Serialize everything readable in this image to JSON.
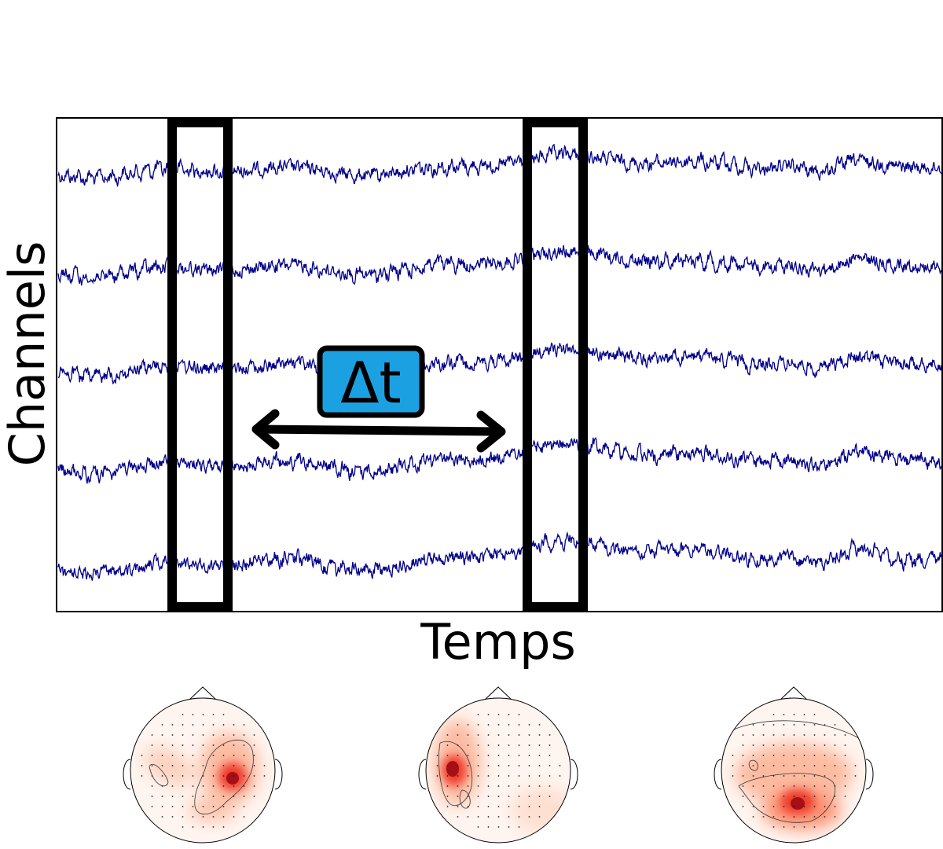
{
  "figure": {
    "xlabel": "Temps",
    "ylabel": "Channels",
    "interval_label": "Δt",
    "channel_count": 5,
    "window_count": 2,
    "topomap_count": 3
  },
  "colors": {
    "signal": "#00008b",
    "window": "#000000",
    "badge_fill": "#1ba1e2",
    "arrow": "#000000",
    "topo_peak": "#a50f15",
    "topo_mid": "#ef3b2c",
    "topo_low": "#fcbba1"
  },
  "icons": {
    "arrow": "double-headed-arrow",
    "topomap": "scalp-topography-head"
  }
}
